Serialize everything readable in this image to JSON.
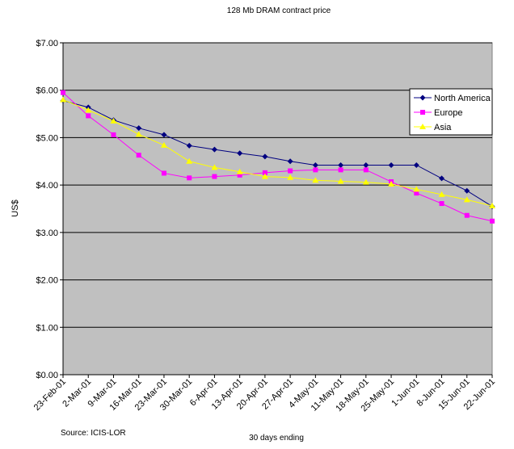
{
  "chart_data": {
    "type": "line",
    "title": "128 Mb DRAM contract price",
    "xlabel": "30 days ending",
    "ylabel": "US$",
    "source": "Source: ICIS-LOR",
    "categories": [
      "23-Feb-01",
      "2-Mar-01",
      "9-Mar-01",
      "16-Mar-01",
      "23-Mar-01",
      "30-Mar-01",
      "6-Apr-01",
      "13-Apr-01",
      "20-Apr-01",
      "27-Apr-01",
      "4-May-01",
      "11-May-01",
      "18-May-01",
      "25-May-01",
      "1-Jun-01",
      "8-Jun-01",
      "15-Jun-01",
      "22-Jun-01"
    ],
    "y_ticks": [
      "$0.00",
      "$1.00",
      "$2.00",
      "$3.00",
      "$4.00",
      "$5.00",
      "$6.00",
      "$7.00"
    ],
    "ylim": [
      0,
      7
    ],
    "grid": true,
    "legend_position": "top-right",
    "plot_background": "#c0c0c0",
    "series": [
      {
        "name": "North America",
        "color": "#000080",
        "marker": "diamond",
        "values": [
          5.78,
          5.64,
          5.37,
          5.2,
          5.06,
          4.83,
          4.75,
          4.67,
          4.6,
          4.5,
          4.42,
          4.42,
          4.42,
          4.42,
          4.42,
          4.14,
          3.88,
          3.55
        ]
      },
      {
        "name": "Europe",
        "color": "#ff00ff",
        "marker": "square",
        "values": [
          5.95,
          5.46,
          5.06,
          4.63,
          4.25,
          4.15,
          4.18,
          4.21,
          4.26,
          4.3,
          4.32,
          4.32,
          4.32,
          4.07,
          3.83,
          3.61,
          3.36,
          3.24
        ]
      },
      {
        "name": "Asia",
        "color": "#ffff00",
        "marker": "triangle",
        "values": [
          5.8,
          5.58,
          5.35,
          5.07,
          4.84,
          4.5,
          4.37,
          4.28,
          4.18,
          4.16,
          4.1,
          4.08,
          4.06,
          4.02,
          3.91,
          3.8,
          3.69,
          3.56
        ]
      }
    ]
  }
}
